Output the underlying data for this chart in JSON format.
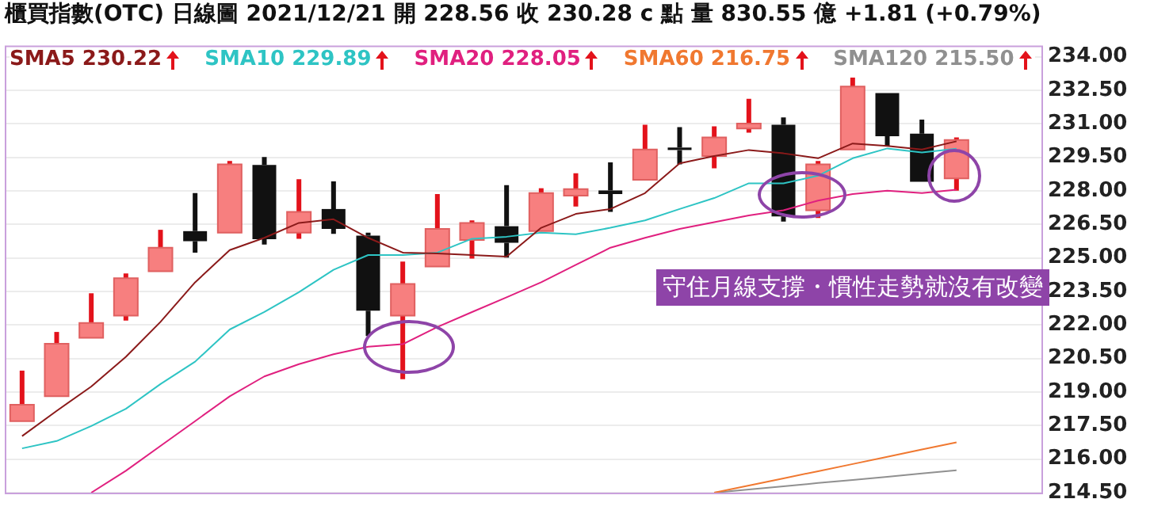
{
  "chart_data": {
    "type": "candlestick",
    "title": "櫃買指數(OTC)  日線圖  2021/12/21  開 228.56  收 230.28 c 點  量 830.55 億  +1.81 (+0.79%)",
    "categories": [
      null,
      null,
      null,
      null,
      null,
      null,
      null,
      null,
      null,
      null,
      null,
      null,
      null,
      null,
      null,
      null,
      null,
      null,
      null,
      null,
      null,
      null,
      null,
      null,
      null,
      null,
      null,
      null,
      null,
      null
    ],
    "ohlc": [
      [
        217.7,
        219.96,
        217.7,
        218.43
      ],
      [
        218.81,
        221.69,
        218.81,
        221.16
      ],
      [
        221.43,
        223.42,
        221.43,
        222.09
      ],
      [
        222.42,
        224.31,
        222.2,
        224.09
      ],
      [
        224.4,
        226.26,
        224.4,
        225.46
      ],
      [
        226.2,
        227.9,
        225.24,
        225.75
      ],
      [
        226.13,
        229.34,
        226.13,
        229.19
      ],
      [
        229.16,
        229.52,
        225.6,
        225.84
      ],
      [
        226.13,
        228.52,
        225.86,
        227.06
      ],
      [
        227.19,
        228.43,
        226.08,
        226.3
      ],
      [
        226.0,
        226.13,
        221.51,
        222.64
      ],
      [
        222.42,
        224.84,
        219.58,
        223.84
      ],
      [
        224.62,
        227.86,
        224.62,
        226.3
      ],
      [
        225.8,
        226.68,
        224.97,
        226.57
      ],
      [
        226.42,
        228.26,
        225.02,
        225.68
      ],
      [
        226.2,
        228.12,
        226.2,
        227.9
      ],
      [
        227.79,
        228.79,
        227.3,
        228.08
      ],
      [
        228.02,
        229.28,
        227.06,
        227.86
      ],
      [
        228.5,
        230.96,
        228.5,
        229.85
      ],
      [
        229.94,
        230.85,
        229.19,
        229.83
      ],
      [
        229.56,
        230.89,
        229.01,
        230.39
      ],
      [
        230.79,
        232.12,
        230.61,
        231.01
      ],
      [
        230.96,
        231.29,
        226.63,
        226.86
      ],
      [
        227.13,
        229.34,
        226.79,
        229.19
      ],
      [
        229.85,
        233.07,
        229.85,
        232.67
      ],
      [
        232.38,
        232.38,
        230.01,
        230.45
      ],
      [
        230.56,
        231.19,
        228.41,
        228.41
      ],
      [
        228.56,
        230.39,
        228.01,
        230.28
      ],
      null,
      null
    ],
    "colors": [
      "#f77f7f",
      "#f77f7f",
      "#f77f7f",
      "#f77f7f",
      "#f77f7f",
      "#111111",
      "#f77f7f",
      "#111111",
      "#f77f7f",
      "#111111",
      "#111111",
      "#f77f7f",
      "#f77f7f",
      "#f77f7f",
      "#111111",
      "#f77f7f",
      "#f77f7f",
      "#111111",
      "#f77f7f",
      "#111111",
      "#f77f7f",
      "#f77f7f",
      "#111111",
      "#f77f7f",
      "#f77f7f",
      "#111111",
      "#111111",
      "#f77f7f",
      null,
      null
    ],
    "series": [
      {
        "name": "SMA5 230.22",
        "type": "line",
        "color": "#8b1a1a",
        "values": [
          217.03,
          218.16,
          219.25,
          220.58,
          222.14,
          223.91,
          225.35,
          225.9,
          226.57,
          226.73,
          225.9,
          225.24,
          225.2,
          225.13,
          225.06,
          226.35,
          226.97,
          227.19,
          227.9,
          229.23,
          229.56,
          229.83,
          229.68,
          229.46,
          230.12,
          230.01,
          229.85,
          230.22,
          null,
          null
        ]
      },
      {
        "name": "SMA10 229.89",
        "type": "line",
        "color": "#2ec4c4",
        "values": [
          216.48,
          216.81,
          217.48,
          218.25,
          219.36,
          220.36,
          221.8,
          222.58,
          223.47,
          224.47,
          225.13,
          225.13,
          225.24,
          225.86,
          225.95,
          226.13,
          226.06,
          226.35,
          226.68,
          227.19,
          227.68,
          228.34,
          228.34,
          228.68,
          229.46,
          229.9,
          229.72,
          229.89,
          null,
          null
        ]
      },
      {
        "name": "SMA20 228.05",
        "type": "line",
        "color": "#e0207f",
        "values": [
          null,
          null,
          214.5,
          215.48,
          216.59,
          217.7,
          218.81,
          219.7,
          220.25,
          220.69,
          221.03,
          221.14,
          221.91,
          222.58,
          223.24,
          223.91,
          224.69,
          225.46,
          225.9,
          226.3,
          226.6,
          226.9,
          227.13,
          227.57,
          227.86,
          228.01,
          227.9,
          228.05,
          null,
          null
        ]
      },
      {
        "name": "SMA60 216.75",
        "type": "line",
        "color": "#f07830",
        "values": [
          null,
          null,
          null,
          null,
          null,
          null,
          null,
          null,
          null,
          null,
          null,
          null,
          null,
          null,
          null,
          null,
          null,
          null,
          null,
          null,
          214.5,
          214.82,
          215.14,
          215.46,
          215.78,
          216.1,
          216.43,
          216.75,
          null,
          null
        ]
      },
      {
        "name": "SMA120 215.50",
        "type": "line",
        "color": "#909090",
        "values": [
          null,
          null,
          null,
          null,
          null,
          null,
          null,
          null,
          null,
          null,
          null,
          null,
          null,
          null,
          null,
          null,
          null,
          null,
          null,
          null,
          214.5,
          214.64,
          214.78,
          214.93,
          215.07,
          215.21,
          215.36,
          215.5,
          null,
          null
        ]
      }
    ],
    "ylim": [
      214.5,
      234.5
    ],
    "yticks": [
      {
        "value": 214.5,
        "label": "214.50"
      },
      {
        "value": 216,
        "label": "216.00"
      },
      {
        "value": 217.5,
        "label": "217.50"
      },
      {
        "value": 219,
        "label": "219.00"
      },
      {
        "value": 220.5,
        "label": "220.50"
      },
      {
        "value": 222,
        "label": "222.00"
      },
      {
        "value": 223.5,
        "label": "223.50"
      },
      {
        "value": 225,
        "label": "225.00"
      },
      {
        "value": 226.5,
        "label": "226.50"
      },
      {
        "value": 228,
        "label": "228.00"
      },
      {
        "value": 229.5,
        "label": "229.50"
      },
      {
        "value": 231,
        "label": "231.00"
      },
      {
        "value": 232.5,
        "label": "232.50"
      },
      {
        "value": 234,
        "label": "234.00"
      }
    ],
    "tick_labels": "y",
    "grid": "y",
    "legend": "top left",
    "annotations": [
      "守住月線支撐・慣性走勢就沒有改變"
    ]
  }
}
